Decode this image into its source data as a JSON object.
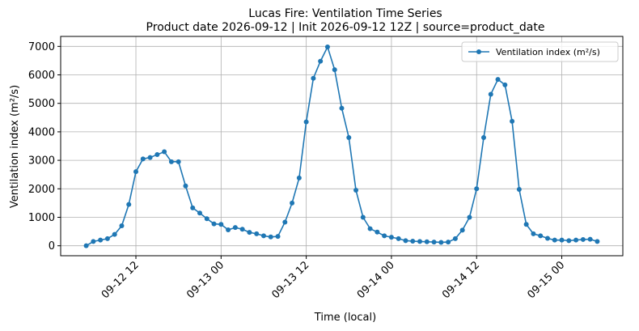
{
  "chart_data": {
    "type": "line",
    "title": "Lucas Fire: Ventilation Time Series",
    "subtitle": "Product date 2026-09-12 | Init 2026-09-12 12Z | source=product_date",
    "x_label": "Time (local)",
    "y_label": "Ventilation index (m²/s)",
    "x": [
      "09-12 05",
      "09-12 06",
      "09-12 07",
      "09-12 08",
      "09-12 09",
      "09-12 10",
      "09-12 11",
      "09-12 12",
      "09-12 13",
      "09-12 14",
      "09-12 15",
      "09-12 16",
      "09-12 17",
      "09-12 18",
      "09-12 19",
      "09-12 20",
      "09-12 21",
      "09-12 22",
      "09-12 23",
      "09-13 00",
      "09-13 01",
      "09-13 02",
      "09-13 03",
      "09-13 04",
      "09-13 05",
      "09-13 06",
      "09-13 07",
      "09-13 08",
      "09-13 09",
      "09-13 10",
      "09-13 11",
      "09-13 12",
      "09-13 13",
      "09-13 14",
      "09-13 15",
      "09-13 16",
      "09-13 17",
      "09-13 18",
      "09-13 19",
      "09-13 20",
      "09-13 21",
      "09-13 22",
      "09-13 23",
      "09-14 00",
      "09-14 01",
      "09-14 02",
      "09-14 03",
      "09-14 04",
      "09-14 05",
      "09-14 06",
      "09-14 07",
      "09-14 08",
      "09-14 09",
      "09-14 10",
      "09-14 11",
      "09-14 12",
      "09-14 13",
      "09-14 14",
      "09-14 15",
      "09-14 16",
      "09-14 17",
      "09-14 18",
      "09-14 19",
      "09-14 20",
      "09-14 21",
      "09-14 22",
      "09-14 23",
      "09-15 00",
      "09-15 01",
      "09-15 02",
      "09-15 03",
      "09-15 04",
      "09-15 05"
    ],
    "series": [
      {
        "name": "Ventilation index (m²/s)",
        "color": "#1f77b4",
        "values": [
          0,
          150,
          200,
          250,
          400,
          700,
          1450,
          2600,
          3050,
          3100,
          3200,
          3300,
          2950,
          2950,
          2100,
          1330,
          1150,
          950,
          770,
          750,
          560,
          640,
          580,
          470,
          420,
          350,
          310,
          330,
          830,
          1500,
          2380,
          4350,
          5880,
          6480,
          6980,
          6180,
          4830,
          3800,
          1950,
          1000,
          600,
          480,
          350,
          300,
          250,
          180,
          160,
          150,
          140,
          130,
          120,
          130,
          250,
          550,
          1000,
          2000,
          3800,
          5320,
          5840,
          5650,
          4370,
          1980,
          750,
          420,
          350,
          260,
          200,
          200,
          180,
          200,
          220,
          230,
          150
        ]
      }
    ],
    "xticks": [
      "09-12 12",
      "09-13 00",
      "09-13 12",
      "09-14 00",
      "09-14 12",
      "09-15 00"
    ],
    "ylim": [
      -350,
      7350
    ],
    "yticks": [
      0,
      1000,
      2000,
      3000,
      4000,
      5000,
      6000,
      7000
    ],
    "grid": true,
    "legend": "upper right"
  }
}
